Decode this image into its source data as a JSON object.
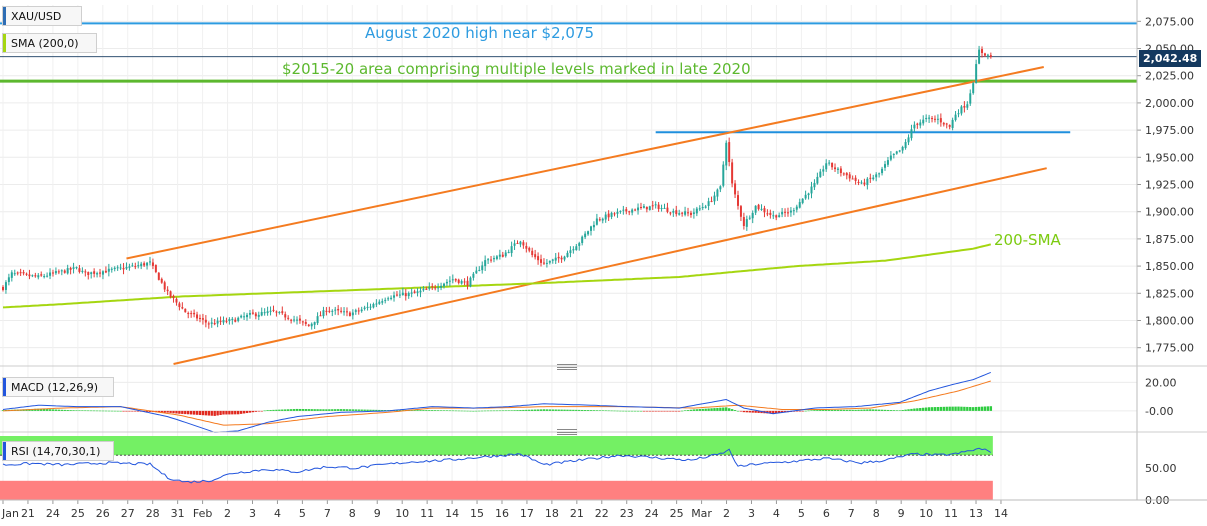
{
  "labels": {
    "symbol": "XAU/USD",
    "sma": "SMA (200,0)",
    "macd": "MACD (12,26,9)",
    "rsi": "RSI (14,70,30,1)"
  },
  "annotations": {
    "august_high": "August 2020 high near $2,075",
    "area_2015_20": "$2015-20 area comprising multiple levels marked in late 2020",
    "sma_200": "200-SMA"
  },
  "last_price": "2,042.48",
  "colors": {
    "bull": "#26a69a",
    "bear": "#e53935",
    "channel": "#f47b20",
    "sma": "#a5d610",
    "august_line": "#2d9be0",
    "green_line": "#5cb82e",
    "horizontal_resistance": "#1f8fdd",
    "macd_line": "#2255dd",
    "signal_line": "#f47b20",
    "hist_pos": "#2ecc40",
    "hist_neg": "#e0281e",
    "rsi_line": "#2255dd",
    "overbought_zone": "#74f064",
    "oversold_zone": "#ff8080",
    "price_tag": "#14395f"
  },
  "chart_data": [
    {
      "type": "candlestick",
      "title": "XAU/USD",
      "ylim": [
        1760,
        2090
      ],
      "y_ticks": [
        1775,
        1800,
        1825,
        1850,
        1875,
        1900,
        1925,
        1950,
        1975,
        2000,
        2025,
        2050,
        2075
      ],
      "y_tick_labels": [
        "1,775.00",
        "1,800.00",
        "1,825.00",
        "1,850.00",
        "1,875.00",
        "1,900.00",
        "1,925.00",
        "1,950.00",
        "1,975.00",
        "2,000.00",
        "2,025.00",
        "2,050.00",
        "2,075.00"
      ],
      "x_labels": [
        "Jan",
        "21",
        "24",
        "25",
        "26",
        "27",
        "28",
        "31",
        "Feb",
        "2",
        "3",
        "4",
        "5",
        "7",
        "8",
        "9",
        "10",
        "11",
        "14",
        "15",
        "16",
        "17",
        "18",
        "21",
        "22",
        "23",
        "24",
        "25",
        "Mar",
        "2",
        "3",
        "4",
        "5",
        "6",
        "7",
        "8",
        "9",
        "10",
        "11",
        "13",
        "14"
      ],
      "close_anchors": [
        [
          0,
          1830
        ],
        [
          3,
          1843
        ],
        [
          12,
          1840
        ],
        [
          25,
          1848
        ],
        [
          28,
          1843
        ],
        [
          36,
          1846
        ],
        [
          45,
          1850
        ],
        [
          50,
          1853
        ],
        [
          56,
          1825
        ],
        [
          62,
          1808
        ],
        [
          70,
          1797
        ],
        [
          78,
          1800
        ],
        [
          84,
          1805
        ],
        [
          92,
          1808
        ],
        [
          100,
          1800
        ],
        [
          104,
          1795
        ],
        [
          110,
          1810
        ],
        [
          118,
          1806
        ],
        [
          124,
          1812
        ],
        [
          131,
          1822
        ],
        [
          140,
          1825
        ],
        [
          146,
          1830
        ],
        [
          153,
          1838
        ],
        [
          158,
          1834
        ],
        [
          164,
          1855
        ],
        [
          170,
          1860
        ],
        [
          176,
          1874
        ],
        [
          180,
          1860
        ],
        [
          184,
          1852
        ],
        [
          190,
          1858
        ],
        [
          196,
          1872
        ],
        [
          202,
          1893
        ],
        [
          208,
          1898
        ],
        [
          214,
          1902
        ],
        [
          222,
          1905
        ],
        [
          228,
          1900
        ],
        [
          234,
          1898
        ],
        [
          240,
          1908
        ],
        [
          244,
          1922
        ],
        [
          246,
          1965
        ],
        [
          248,
          1925
        ],
        [
          250,
          1905
        ],
        [
          252,
          1888
        ],
        [
          256,
          1905
        ],
        [
          262,
          1896
        ],
        [
          268,
          1900
        ],
        [
          272,
          1912
        ],
        [
          276,
          1925
        ],
        [
          280,
          1945
        ],
        [
          284,
          1938
        ],
        [
          288,
          1932
        ],
        [
          292,
          1925
        ],
        [
          298,
          1935
        ],
        [
          302,
          1950
        ],
        [
          306,
          1958
        ],
        [
          310,
          1980
        ],
        [
          314,
          1985
        ],
        [
          318,
          1985
        ],
        [
          322,
          1978
        ],
        [
          324,
          1990
        ],
        [
          328,
          2000
        ],
        [
          330,
          2020
        ],
        [
          332,
          2048
        ],
        [
          334,
          2045
        ],
        [
          336,
          2042.48
        ]
      ],
      "sma_200_anchors": [
        [
          0,
          1812
        ],
        [
          20,
          1815
        ],
        [
          60,
          1822
        ],
        [
          120,
          1828
        ],
        [
          180,
          1834
        ],
        [
          230,
          1840
        ],
        [
          270,
          1850
        ],
        [
          300,
          1855
        ],
        [
          330,
          1866
        ],
        [
          336,
          1870
        ]
      ],
      "levels": {
        "august_2020_high": 2075,
        "area_2015_20": 2020,
        "resistance_1973": 1973,
        "last_close": 2042.48
      },
      "channel_upper": {
        "from": [
          42,
          1857
        ],
        "to": [
          354,
          2033
        ]
      },
      "channel_lower": {
        "from": [
          58,
          1760
        ],
        "to": [
          355,
          1940
        ]
      },
      "resistance_segment": {
        "from": [
          222,
          1973
        ],
        "to": [
          363,
          1973
        ]
      }
    },
    {
      "type": "line",
      "title": "MACD (12,26,9)",
      "ylim": [
        -12,
        28
      ],
      "y_ticks": [
        20,
        0
      ],
      "y_tick_labels": [
        "20.00",
        "-0.00"
      ],
      "macd_anchors": [
        [
          0,
          1
        ],
        [
          12,
          4
        ],
        [
          25,
          3
        ],
        [
          40,
          3
        ],
        [
          56,
          -4
        ],
        [
          62,
          -8
        ],
        [
          72,
          -15
        ],
        [
          80,
          -14
        ],
        [
          90,
          -8
        ],
        [
          100,
          -4
        ],
        [
          115,
          -1
        ],
        [
          131,
          0
        ],
        [
          146,
          3
        ],
        [
          160,
          2
        ],
        [
          172,
          3
        ],
        [
          184,
          5
        ],
        [
          200,
          4
        ],
        [
          212,
          3
        ],
        [
          230,
          2
        ],
        [
          246,
          8
        ],
        [
          252,
          2
        ],
        [
          262,
          -2
        ],
        [
          276,
          2
        ],
        [
          290,
          3
        ],
        [
          305,
          6
        ],
        [
          315,
          14
        ],
        [
          322,
          18
        ],
        [
          330,
          22
        ],
        [
          336,
          27
        ]
      ],
      "signal_anchors": [
        [
          0,
          0
        ],
        [
          20,
          2
        ],
        [
          40,
          3
        ],
        [
          60,
          -3
        ],
        [
          75,
          -10
        ],
        [
          90,
          -9
        ],
        [
          110,
          -4
        ],
        [
          131,
          -1
        ],
        [
          146,
          2
        ],
        [
          165,
          2
        ],
        [
          185,
          3
        ],
        [
          210,
          3
        ],
        [
          235,
          2
        ],
        [
          250,
          4
        ],
        [
          265,
          1
        ],
        [
          280,
          1
        ],
        [
          295,
          2
        ],
        [
          310,
          7
        ],
        [
          325,
          14
        ],
        [
          336,
          21
        ]
      ]
    },
    {
      "type": "line",
      "title": "RSI (14,70,30,1)",
      "ylim": [
        0,
        100
      ],
      "y_ticks": [
        50,
        0
      ],
      "y_tick_labels": [
        "50.00",
        "0.00"
      ],
      "overbought": 70,
      "oversold": 30,
      "rsi_anchors": [
        [
          0,
          55
        ],
        [
          10,
          57
        ],
        [
          20,
          55
        ],
        [
          35,
          58
        ],
        [
          50,
          56
        ],
        [
          56,
          35
        ],
        [
          62,
          28
        ],
        [
          70,
          30
        ],
        [
          78,
          42
        ],
        [
          90,
          48
        ],
        [
          100,
          44
        ],
        [
          110,
          52
        ],
        [
          120,
          50
        ],
        [
          131,
          56
        ],
        [
          140,
          60
        ],
        [
          150,
          62
        ],
        [
          165,
          68
        ],
        [
          176,
          72
        ],
        [
          184,
          55
        ],
        [
          196,
          62
        ],
        [
          210,
          70
        ],
        [
          222,
          66
        ],
        [
          234,
          62
        ],
        [
          244,
          72
        ],
        [
          247,
          78
        ],
        [
          250,
          52
        ],
        [
          256,
          56
        ],
        [
          268,
          60
        ],
        [
          280,
          65
        ],
        [
          292,
          58
        ],
        [
          300,
          62
        ],
        [
          310,
          72
        ],
        [
          318,
          70
        ],
        [
          324,
          72
        ],
        [
          330,
          78
        ],
        [
          332,
          80
        ],
        [
          336,
          76
        ]
      ]
    }
  ]
}
